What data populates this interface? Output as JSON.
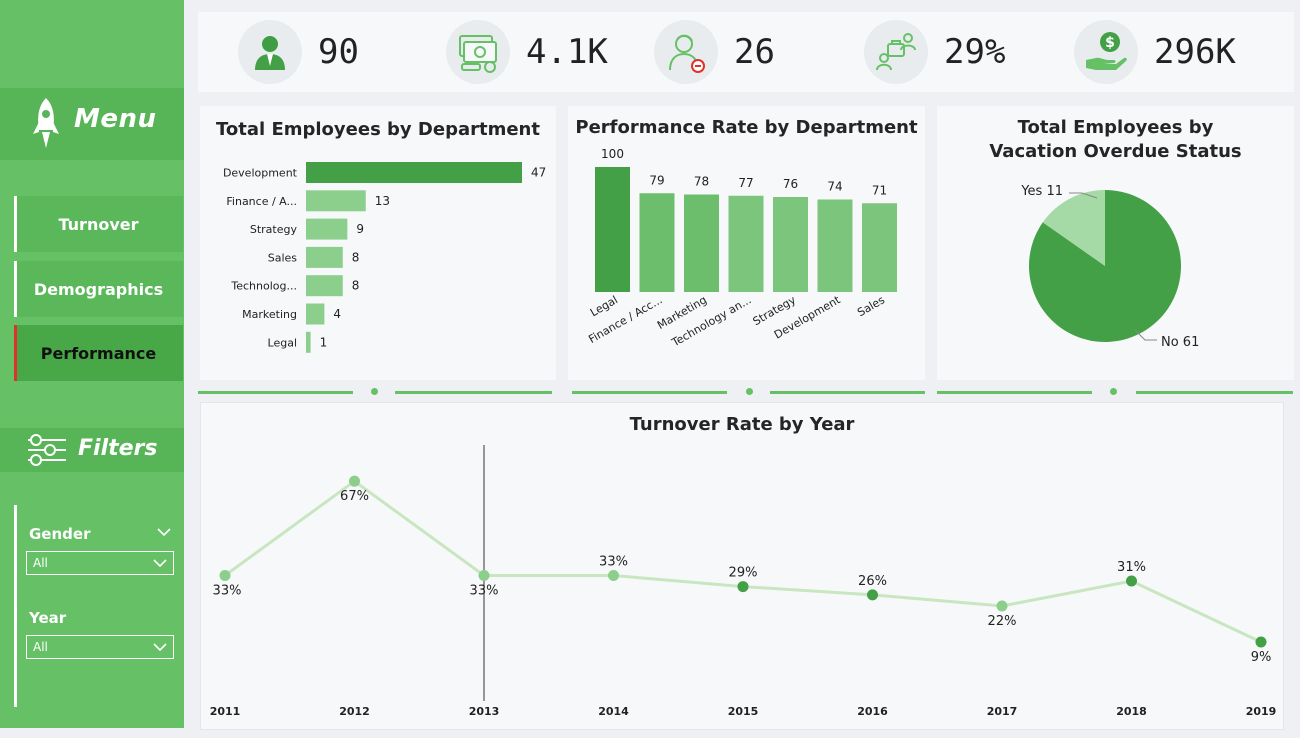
{
  "sidebar": {
    "menu_title": "Menu",
    "nav": [
      {
        "label": "Turnover",
        "active": false
      },
      {
        "label": "Demographics",
        "active": false
      },
      {
        "label": "Performance",
        "active": true
      }
    ],
    "filters_title": "Filters",
    "slicers": [
      {
        "label": "Gender",
        "value": "All"
      },
      {
        "label": "Year",
        "value": "All"
      }
    ]
  },
  "kpis": [
    {
      "icon": "employee-icon",
      "value": "90"
    },
    {
      "icon": "money-icon",
      "value": "4.1K"
    },
    {
      "icon": "person-badge-icon",
      "value": "26"
    },
    {
      "icon": "team-briefcase-icon",
      "value": "29%"
    },
    {
      "icon": "hand-dollar-icon",
      "value": "296K"
    }
  ],
  "colors": {
    "sidebar": "#66c166",
    "accent_dark": "#3f9e43",
    "accent_light": "#8ccf8c",
    "active_marker": "#e0312b"
  },
  "chart_data": [
    {
      "type": "bar",
      "orientation": "horizontal",
      "title": "Total Employees by Department",
      "categories": [
        "Development",
        "Finance / A...",
        "Strategy",
        "Sales",
        "Technolog...",
        "Marketing",
        "Legal"
      ],
      "values": [
        47,
        13,
        9,
        8,
        8,
        4,
        1
      ]
    },
    {
      "type": "bar",
      "orientation": "vertical",
      "title": "Performance Rate by Department",
      "categories": [
        "Legal",
        "Finance / Acc...",
        "Marketing",
        "Technology an...",
        "Strategy",
        "Development",
        "Sales"
      ],
      "values": [
        100,
        79,
        78,
        77,
        76,
        74,
        71
      ]
    },
    {
      "type": "pie",
      "title": "Total Employees by Vacation Overdue Status",
      "slices": [
        {
          "label": "Yes",
          "value": 11,
          "display": "Yes 11",
          "color": "#a5d9a5"
        },
        {
          "label": "No",
          "value": 61,
          "display": "No 61",
          "color": "#43a047"
        }
      ]
    },
    {
      "type": "line",
      "title": "Turnover Rate by Year",
      "x": [
        "2011",
        "2012",
        "2013",
        "2014",
        "2015",
        "2016",
        "2017",
        "2018",
        "2019"
      ],
      "values": [
        33,
        67,
        33,
        33,
        29,
        26,
        22,
        31,
        9
      ],
      "labels": [
        "33%",
        "67%",
        "33%",
        "33%",
        "29%",
        "26%",
        "22%",
        "31%",
        "9%"
      ],
      "highlighted": [
        false,
        false,
        false,
        false,
        true,
        true,
        false,
        true,
        true
      ],
      "ylim": [
        0,
        75
      ]
    }
  ]
}
